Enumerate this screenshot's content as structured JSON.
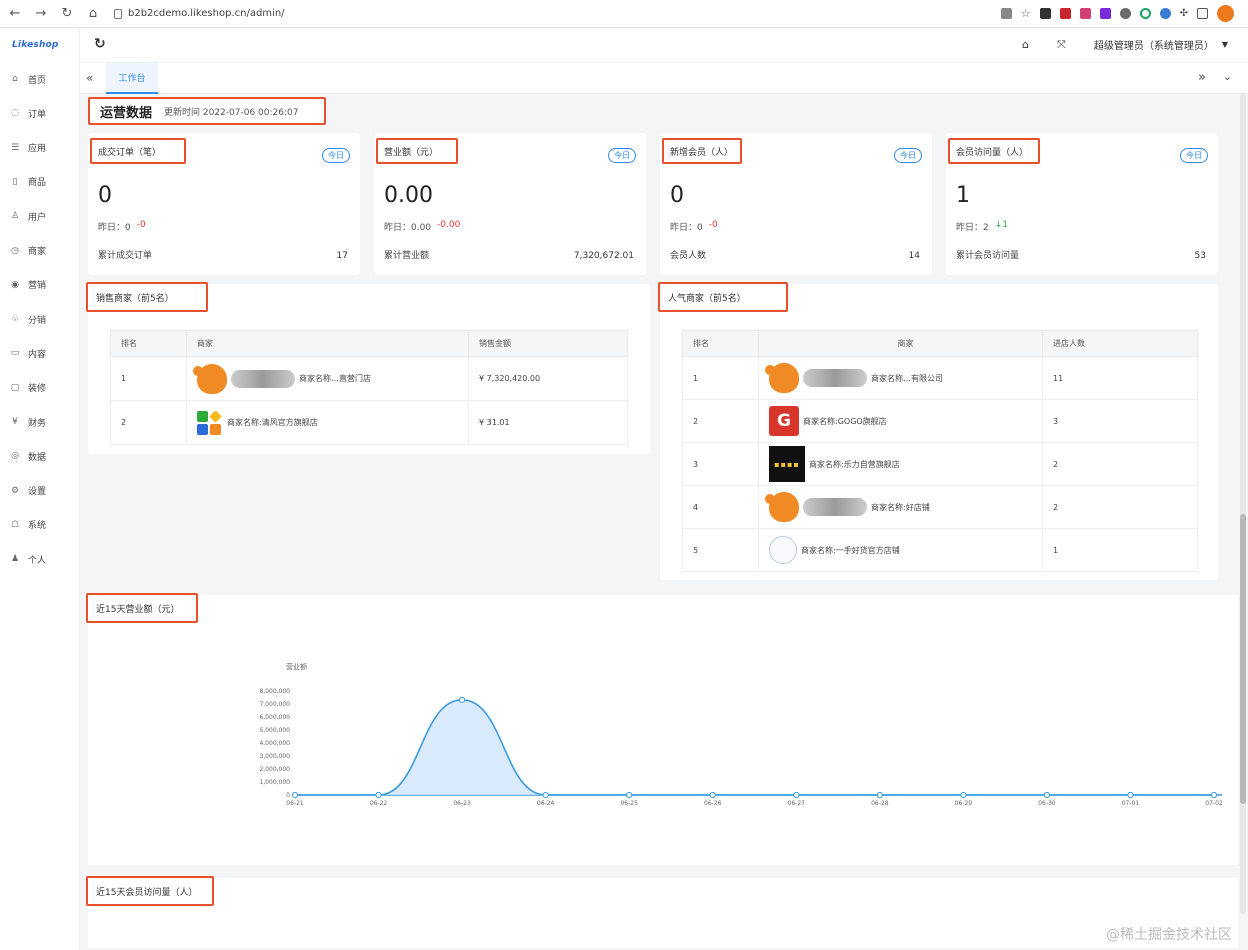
{
  "browser": {
    "url": "b2b2cdemo.likeshop.cn/admin/"
  },
  "sidebar": {
    "logo": "Likeshop",
    "items": [
      {
        "icon": "home-icon",
        "glyph": "⌂",
        "label": "首页"
      },
      {
        "icon": "order-icon",
        "glyph": "◌",
        "label": "订单"
      },
      {
        "icon": "app-icon",
        "glyph": "☰",
        "label": "应用"
      },
      {
        "icon": "goods-icon",
        "glyph": "▯",
        "label": "商品"
      },
      {
        "icon": "user-icon",
        "glyph": "♙",
        "label": "用户"
      },
      {
        "icon": "shop-icon",
        "glyph": "◷",
        "label": "商家"
      },
      {
        "icon": "marketing-icon",
        "glyph": "◉",
        "label": "营销"
      },
      {
        "icon": "distribution-icon",
        "glyph": "♧",
        "label": "分销"
      },
      {
        "icon": "content-icon",
        "glyph": "▭",
        "label": "内容"
      },
      {
        "icon": "decor-icon",
        "glyph": "▢",
        "label": "装修"
      },
      {
        "icon": "finance-icon",
        "glyph": "¥",
        "label": "财务"
      },
      {
        "icon": "data-icon",
        "glyph": "◎",
        "label": "数据"
      },
      {
        "icon": "settings-icon",
        "glyph": "⚙",
        "label": "设置"
      },
      {
        "icon": "system-icon",
        "glyph": "☖",
        "label": "系统"
      },
      {
        "icon": "personal-icon",
        "glyph": "♟",
        "label": "个人"
      }
    ]
  },
  "header": {
    "admin": "超级管理员（系统管理员）",
    "tab": "工作台"
  },
  "overview": {
    "title": "运营数据",
    "updated": "更新时间  2022-07-06 00:26:07"
  },
  "cards": [
    {
      "title": "成交订单（笔）",
      "badge": "今日",
      "value": "0",
      "y_label": "昨日：0",
      "delta": "-0",
      "delta_color": "r",
      "total_label": "累计成交订单",
      "total": "17"
    },
    {
      "title": "营业额（元）",
      "badge": "今日",
      "value": "0.00",
      "y_label": "昨日：0.00",
      "delta": "-0.00",
      "delta_color": "r",
      "total_label": "累计营业额",
      "total": "7,320,672.01"
    },
    {
      "title": "新增会员（人）",
      "badge": "今日",
      "value": "0",
      "y_label": "昨日：0",
      "delta": "-0",
      "delta_color": "r",
      "total_label": "会员人数",
      "total": "14"
    },
    {
      "title": "会员访问量（人）",
      "badge": "今日",
      "value": "1",
      "y_label": "昨日：2",
      "delta": "↓1",
      "delta_color": "g",
      "total_label": "累计会员访问量",
      "total": "53"
    }
  ],
  "top_shops": {
    "title": "销售商家（前5名）",
    "headers": [
      "排名",
      "商家",
      "销售金额"
    ],
    "rows": [
      {
        "rank": "1",
        "name": "商家名称…直营门店",
        "amount": "¥ 7,320,420.00",
        "logo": "pig"
      },
      {
        "rank": "2",
        "name": "商家名称:清风官方旗舰店",
        "amount": "¥ 31.01",
        "logo": "quad"
      }
    ]
  },
  "popular_shops": {
    "title": "人气商家（前5名）",
    "headers": [
      "排名",
      "商家",
      "进店人数"
    ],
    "rows": [
      {
        "rank": "1",
        "name": "商家名称…有限公司",
        "count": "11",
        "logo": "pig"
      },
      {
        "rank": "2",
        "name": "商家名称:GOGO旗舰店",
        "count": "3",
        "logo": "g"
      },
      {
        "rank": "3",
        "name": "商家名称:乐力自营旗舰店",
        "count": "2",
        "logo": "dark"
      },
      {
        "rank": "4",
        "name": "商家名称:好店铺",
        "count": "2",
        "logo": "pig"
      },
      {
        "rank": "5",
        "name": "商家名称:一手好货官方店铺",
        "count": "1",
        "logo": "circle"
      }
    ]
  },
  "chart1_title": "近15天营业额（元）",
  "chart2_title": "近15天会员访问量（人）",
  "colors": {
    "accent": "#2d8cf0",
    "red_box": "#e6502a",
    "line": "#3a9be0"
  },
  "chart_data": {
    "type": "area",
    "title": "近15天营业额（元）",
    "ylabel": "营业额",
    "ylim": [
      0,
      8000000
    ],
    "y_ticks": [
      "0",
      "1,000,000",
      "2,000,000",
      "3,000,000",
      "4,000,000",
      "5,000,000",
      "6,000,000",
      "7,000,000",
      "8,000,000"
    ],
    "categories": [
      "06-21",
      "06-22",
      "06-23",
      "06-24",
      "06-25",
      "06-26",
      "06-27",
      "06-28",
      "06-29",
      "06-30",
      "07-01",
      "07-02"
    ],
    "series": [
      {
        "values": [
          0,
          0,
          7320000,
          0,
          0,
          0,
          0,
          0,
          0,
          0,
          0,
          0
        ]
      }
    ]
  },
  "watermark": "@稀土掘金技术社区"
}
